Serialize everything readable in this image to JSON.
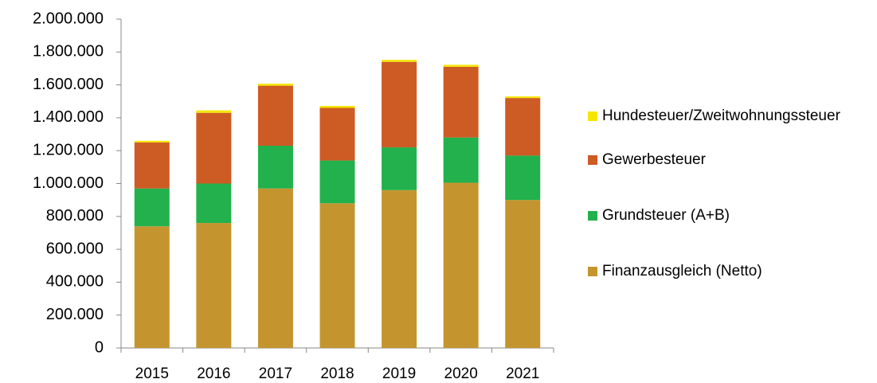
{
  "chart_data": {
    "type": "stacked_bar",
    "categories": [
      "2015",
      "2016",
      "2017",
      "2018",
      "2019",
      "2020",
      "2021"
    ],
    "series": [
      {
        "name": "Finanzausgleich (Netto)",
        "color": "#c4952f",
        "values": [
          740000,
          760000,
          970000,
          880000,
          960000,
          1005000,
          900000
        ]
      },
      {
        "name": "Grundsteuer (A+B)",
        "color": "#22b14c",
        "values": [
          230000,
          240000,
          260000,
          260000,
          260000,
          275000,
          270000
        ]
      },
      {
        "name": "Gewerbesteuer",
        "color": "#cd5b24",
        "values": [
          280000,
          430000,
          365000,
          320000,
          520000,
          430000,
          350000
        ]
      },
      {
        "name": "Hundesteuer/Zweitwohnungssteuer",
        "color": "#f5e600",
        "values": [
          10000,
          15000,
          12000,
          12000,
          12000,
          12000,
          10000
        ]
      }
    ],
    "ylim": [
      0,
      2000000
    ],
    "yticks": [
      0,
      {
        "value": 200000,
        "label": "200.000"
      },
      {
        "value": 400000,
        "label": "400.000"
      },
      {
        "value": 600000,
        "label": "600.000"
      },
      {
        "value": 800000,
        "label": "800.000"
      },
      {
        "value": 1000000,
        "label": "1.000.000"
      },
      {
        "value": 1200000,
        "label": "1.200.000"
      },
      {
        "value": 1400000,
        "label": "1.400.000"
      },
      {
        "value": 1600000,
        "label": "1.600.000"
      },
      {
        "value": 1800000,
        "label": "1.800.000"
      },
      {
        "value": 2000000,
        "label": "2.000.000"
      }
    ],
    "legend": "right"
  }
}
